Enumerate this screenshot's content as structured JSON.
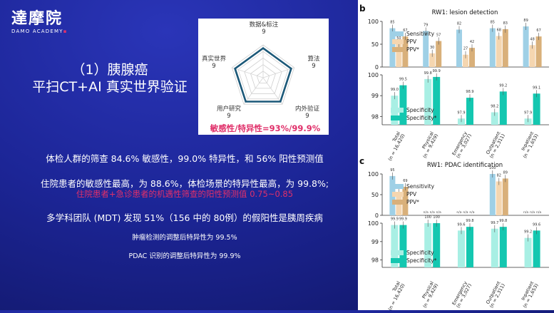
{
  "logo": {
    "cn": "達摩院",
    "en": "DAMO ACADEMY"
  },
  "title": {
    "line1": "（1）胰腺癌",
    "line2": "平扫CT+AI 真实世界验证"
  },
  "radar": {
    "labels": [
      {
        "name": "数据&标注",
        "score": "9"
      },
      {
        "name": "算法",
        "score": "9"
      },
      {
        "name": "内外验证",
        "score": "9"
      },
      {
        "name": "用户研究",
        "score": "9"
      },
      {
        "name": "真实世界",
        "score": "9"
      }
    ],
    "values": [
      9,
      9,
      9,
      9,
      9
    ],
    "max": 10,
    "highlight": "敏感性/特异性=93%/99.9%"
  },
  "bullets": {
    "b1": "体检人群的筛查 84.6% 敏感性，99.0% 特异性，和 56% 阳性预测值",
    "b2": "住院患者的敏感性最高，为 88.6%，体检场景的特异性最高，为 99.8%;",
    "b3": "住院患者+急诊患者的机遇性筛查的阳性预测值 0.75~0.85",
    "b4": "多学科团队 (MDT) 发现 51%（156 中的 80例）的假阳性是胰周疾病",
    "b5": "肿瘤检测的调整后特异性为 99.5%",
    "b6": "PDAC 识别的调整后特异性为 99.9%"
  },
  "colors": {
    "sensitivity": "#9fd0e6",
    "ppv": "#f5d6b0",
    "ppv_star": "#d9b07a",
    "specificity": "#a8efe4",
    "specificity_star": "#14c7b0",
    "highlight": "#e0306a"
  },
  "chart_data": [
    {
      "panel": "b",
      "title": "RW1: lesion detection",
      "type": "bar",
      "categories": [
        "Total\n(n = 16,420)",
        "Physical\n(n = 9,429)",
        "Emergency\n(n = 3,027)",
        "Outpatient\n(n = 2,311)",
        "Inpatient\n(n = 1,653)"
      ],
      "top": {
        "ylim": [
          0,
          100
        ],
        "yticks": [
          0,
          50,
          100
        ],
        "series": [
          {
            "name": "Sensitivity",
            "values": [
              85,
              79,
              82,
              85,
              89
            ]
          },
          {
            "name": "PPV",
            "values": [
              50,
              30,
              27,
              68,
              48
            ]
          },
          {
            "name": "PPV*",
            "values": [
              67,
              57,
              42,
              83,
              67
            ]
          }
        ],
        "labels": [
          [
            "85",
            "50",
            "67"
          ],
          [
            "79",
            "30",
            "57"
          ],
          [
            "82",
            "27",
            "42"
          ],
          [
            "85",
            "68",
            "83"
          ],
          [
            "89",
            "48",
            "67"
          ]
        ]
      },
      "bottom": {
        "ylim": [
          97.6,
          100
        ],
        "yticks": [
          98,
          99,
          100
        ],
        "series": [
          {
            "name": "Specificity",
            "values": [
              99.0,
              99.8,
              97.9,
              98.2,
              97.9
            ]
          },
          {
            "name": "Specificity*",
            "values": [
              99.5,
              99.9,
              98.9,
              99.2,
              99.1
            ]
          }
        ],
        "labels": [
          [
            "99.0",
            "99.5"
          ],
          [
            "99.8",
            "99.9"
          ],
          [
            "97.9",
            "98.9"
          ],
          [
            "98.2",
            "99.2"
          ],
          [
            "97.9",
            "99.1"
          ]
        ]
      }
    },
    {
      "panel": "c",
      "title": "RW1: PDAC identification",
      "type": "bar",
      "categories": [
        "Total\n(n = 16,420)",
        "Physical\n(n = 9,429)",
        "Emergency\n(n = 3,027)",
        "Outpatient\n(n = 2,311)",
        "Inpatient\n(n = 1,653)"
      ],
      "top": {
        "ylim": [
          0,
          100
        ],
        "yticks": [
          0,
          50,
          100
        ],
        "series": [
          {
            "name": "Sensitivity",
            "values": [
              95,
              null,
              null,
              100,
              null
            ]
          },
          {
            "name": "PPV",
            "values": [
              56,
              null,
              null,
              82,
              null
            ]
          },
          {
            "name": "PPV*",
            "values": [
              69,
              null,
              null,
              89,
              null
            ]
          }
        ],
        "labels": [
          [
            "95",
            "56",
            "69"
          ],
          [
            "n/a",
            "n/a",
            "n/a"
          ],
          [
            "n/a",
            "n/a",
            "n/a"
          ],
          [
            "100",
            "82",
            "89"
          ],
          [
            "n/a",
            "n/a",
            "n/a"
          ]
        ]
      },
      "bottom": {
        "ylim": [
          97.6,
          100
        ],
        "yticks": [
          98,
          99,
          100
        ],
        "series": [
          {
            "name": "Specificity",
            "values": [
              99.9,
              100,
              99.6,
              99.7,
              99.2
            ]
          },
          {
            "name": "Specificity*",
            "values": [
              99.9,
              100,
              99.8,
              99.8,
              99.6
            ]
          }
        ],
        "labels": [
          [
            "99.9",
            "99.9"
          ],
          [
            "100",
            "100"
          ],
          [
            "99.6",
            "99.8"
          ],
          [
            "99.7",
            "99.8"
          ],
          [
            "99.2",
            "99.6"
          ]
        ]
      }
    }
  ]
}
